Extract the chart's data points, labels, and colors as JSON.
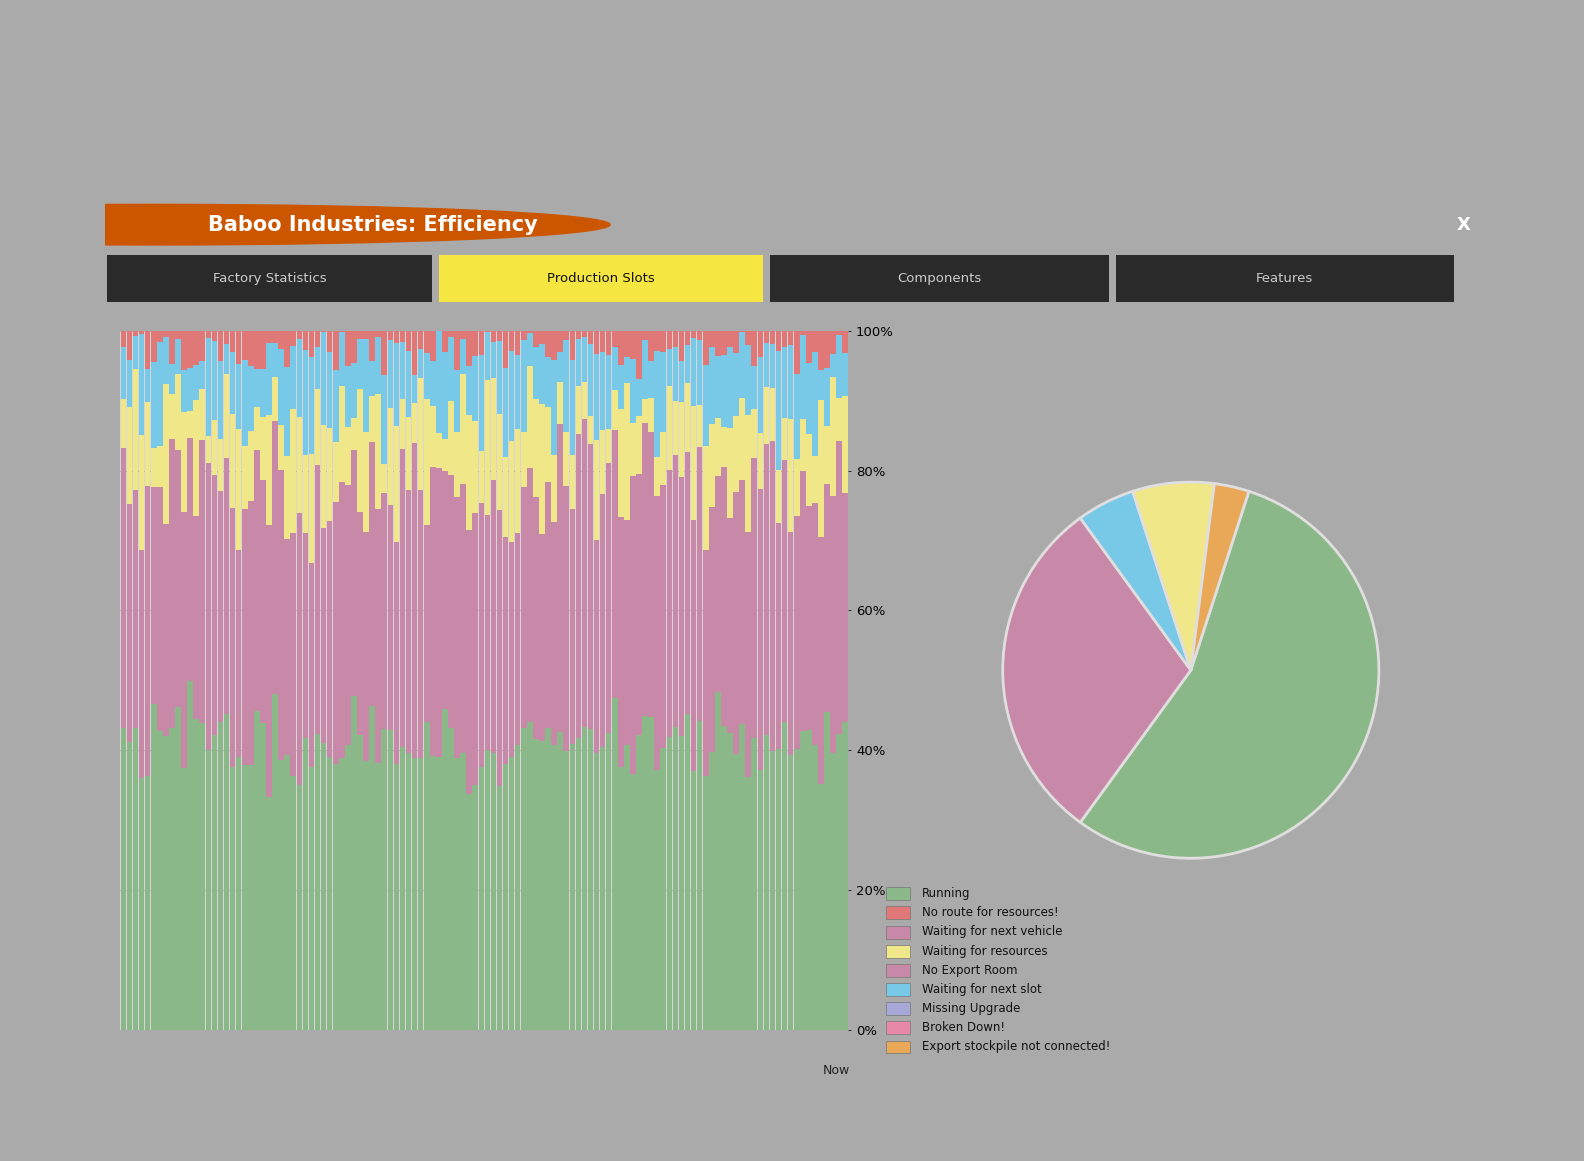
{
  "title": "Baboo Industries: Efficiency",
  "tab_labels": [
    "Factory Statistics",
    "Production Slots",
    "Components",
    "Features"
  ],
  "active_tab": "Production Slots",
  "ytick_vals": [
    0,
    20,
    40,
    60,
    80,
    100
  ],
  "ytick_labels": [
    "0%",
    "20%",
    "40%",
    "60%",
    "80%",
    "100%"
  ],
  "xlabel_right": "Now",
  "outer_bg": "#aaaaaa",
  "panel_bg": "#e0dede",
  "chart_bg": "#d8d4d8",
  "title_bg": "#111111",
  "title_color": "#ffffff",
  "tab_active_color": "#f5e642",
  "tab_inactive_color": "#2a2a2a",
  "tab_text_inactive": "#cccccc",
  "tab_text_active": "#111111",
  "grid_color": "#b8b0b8",
  "color_running": "#8ab888",
  "color_no_route": "#e07878",
  "color_waiting_vehicle": "#c888a8",
  "color_waiting_resources": "#f0e888",
  "color_waiting_slot": "#78c8e8",
  "color_missing_upgrade": "#a8a8d8",
  "color_broken": "#e888a8",
  "color_export_not_connected": "#e8a858",
  "pie_sizes": [
    55,
    30,
    5,
    7,
    3
  ],
  "pie_colors": [
    "#8ab888",
    "#c888a8",
    "#78c8e8",
    "#f0e888",
    "#e8a858"
  ],
  "pie_startangle": 72,
  "legend_labels": [
    "Running",
    "No route for resources!",
    "Waiting for next vehicle",
    "Waiting for resources",
    "No Export Room",
    "Waiting for next slot",
    "Missing Upgrade",
    "Broken Down!",
    "Export stockpile not connected!"
  ],
  "legend_colors": [
    "#8ab888",
    "#e07878",
    "#c888a8",
    "#f0e888",
    "#c888a8",
    "#78c8e8",
    "#a8a8d8",
    "#e888a8",
    "#e8a858"
  ],
  "n_bars": 120,
  "seed": 77
}
